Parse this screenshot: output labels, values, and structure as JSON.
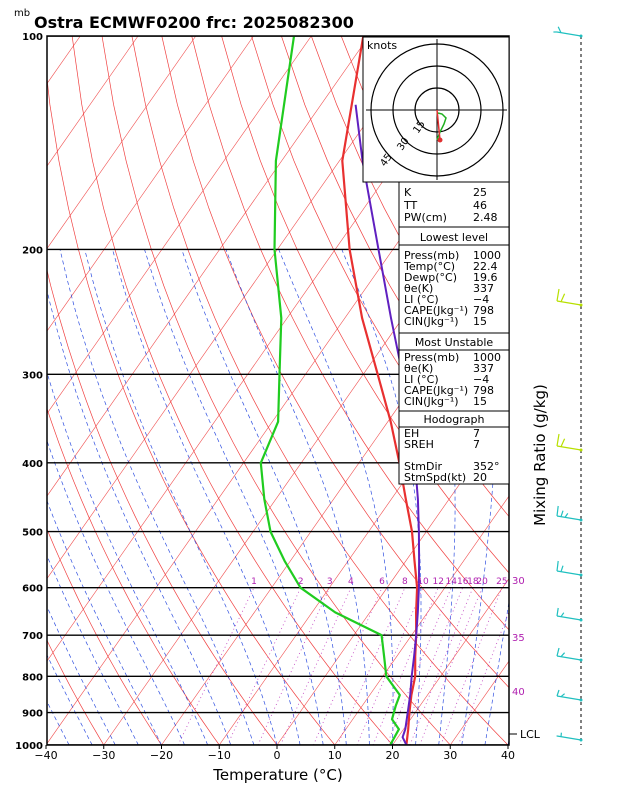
{
  "title": "Ostra ECMWF0200  frc: 2025082300",
  "units_label": "mb",
  "xlabel": "Temperature (°C)",
  "ylabel_right": "Mixing Ratio (g/kg)",
  "lcl_label": "LCL",
  "hodograph": {
    "units": "knots",
    "ring_labels": [
      "15",
      "30",
      "45"
    ]
  },
  "mixing_ratio_labels": [
    "1",
    "2",
    "3",
    "4",
    "6",
    "8",
    "10",
    "12",
    "14",
    "16",
    "18",
    "20",
    "25",
    "30"
  ],
  "theta_e_labels": [
    "30",
    "35",
    "40"
  ],
  "indices": {
    "K_label": "K",
    "K": "25",
    "TT_label": "TT",
    "TT": "46",
    "PW_label": "PW(cm)",
    "PW": "2.48"
  },
  "lowest_level": {
    "heading": "Lowest level",
    "rows": [
      {
        "label": "Press(mb)",
        "value": "1000"
      },
      {
        "label": "Temp(°C)",
        "value": "22.4"
      },
      {
        "label": "Dewp(°C)",
        "value": "19.6"
      },
      {
        "label": "θe(K)",
        "value": "337"
      },
      {
        "label": "LI (°C)",
        "value": "−4"
      },
      {
        "label": "CAPE(Jkg⁻¹)",
        "value": "798"
      },
      {
        "label": "CIN(Jkg⁻¹)",
        "value": "15"
      }
    ]
  },
  "most_unstable": {
    "heading": "Most Unstable",
    "rows": [
      {
        "label": "Press(mb)",
        "value": "1000"
      },
      {
        "label": "θe(K)",
        "value": "337"
      },
      {
        "label": "LI (°C)",
        "value": "−4"
      },
      {
        "label": "CAPE(Jkg⁻¹)",
        "value": "798"
      },
      {
        "label": "CIN(Jkg⁻¹)",
        "value": "15"
      }
    ]
  },
  "hodo_table": {
    "heading": "Hodograph",
    "rows": [
      {
        "label": "EH",
        "value": "7"
      },
      {
        "label": "SREH",
        "value": "7"
      },
      {
        "label": "",
        "value": ""
      },
      {
        "label": "StmDir",
        "value": "352°"
      },
      {
        "label": "StmSpd(kt)",
        "value": "20"
      }
    ]
  },
  "colors": {
    "isotherm": "#f05050",
    "dry_adiabat": "#f04040",
    "moist_adiabat": "#3050e0",
    "mixing_ratio": "#c040c0",
    "temperature": "#e83030",
    "dewpoint": "#20cc20",
    "parcel": "#6020c0",
    "label_magenta": "#b020b0",
    "wind_cyan": "#20c0c0",
    "wind_green": "#b8e000"
  },
  "chart_data": {
    "type": "line",
    "chart_kind": "skew-T log-P",
    "xlabel": "Temperature (°C)",
    "x_ticks": [
      -40,
      -30,
      -20,
      -10,
      0,
      10,
      20,
      30,
      40
    ],
    "xlim": [
      -40,
      40
    ],
    "y_scale": "log",
    "ylim": [
      1000,
      100
    ],
    "pressure_ticks": [
      100,
      200,
      300,
      400,
      500,
      600,
      700,
      800,
      900,
      1000
    ],
    "series": [
      {
        "name": "Temperature",
        "points": [
          {
            "p": 1000,
            "t": 22.4
          },
          {
            "p": 950,
            "t": 20.8
          },
          {
            "p": 900,
            "t": 19.0
          },
          {
            "p": 850,
            "t": 17.2
          },
          {
            "p": 800,
            "t": 15.6
          },
          {
            "p": 750,
            "t": 13.2
          },
          {
            "p": 700,
            "t": 10.8
          },
          {
            "p": 650,
            "t": 8.0
          },
          {
            "p": 600,
            "t": 5.2
          },
          {
            "p": 550,
            "t": 1.5
          },
          {
            "p": 500,
            "t": -2.5
          },
          {
            "p": 450,
            "t": -7.5
          },
          {
            "p": 400,
            "t": -13.0
          },
          {
            "p": 350,
            "t": -19.5
          },
          {
            "p": 300,
            "t": -27.5
          },
          {
            "p": 250,
            "t": -37.0
          },
          {
            "p": 200,
            "t": -47.5
          },
          {
            "p": 150,
            "t": -59.5
          },
          {
            "p": 100,
            "t": -71.0
          }
        ]
      },
      {
        "name": "Dewpoint",
        "points": [
          {
            "p": 1000,
            "t": 19.6
          },
          {
            "p": 950,
            "t": 19.2
          },
          {
            "p": 920,
            "t": 16.8
          },
          {
            "p": 880,
            "t": 15.8
          },
          {
            "p": 850,
            "t": 15.2
          },
          {
            "p": 800,
            "t": 10.6
          },
          {
            "p": 750,
            "t": 7.8
          },
          {
            "p": 700,
            "t": 4.8
          },
          {
            "p": 650,
            "t": -6.0
          },
          {
            "p": 600,
            "t": -15.0
          },
          {
            "p": 550,
            "t": -21.0
          },
          {
            "p": 500,
            "t": -27.0
          },
          {
            "p": 450,
            "t": -32.0
          },
          {
            "p": 400,
            "t": -37.0
          },
          {
            "p": 350,
            "t": -39.0
          },
          {
            "p": 300,
            "t": -44.5
          },
          {
            "p": 250,
            "t": -51.0
          },
          {
            "p": 200,
            "t": -60.5
          },
          {
            "p": 150,
            "t": -71.0
          },
          {
            "p": 100,
            "t": -83.0
          }
        ]
      },
      {
        "name": "Parcel",
        "points": [
          {
            "p": 1000,
            "t": 22.4
          },
          {
            "p": 975,
            "t": 20.8
          },
          {
            "p": 950,
            "t": 20.3
          },
          {
            "p": 900,
            "t": 18.7
          },
          {
            "p": 850,
            "t": 17.0
          },
          {
            "p": 800,
            "t": 15.0
          },
          {
            "p": 750,
            "t": 13.0
          },
          {
            "p": 700,
            "t": 10.8
          },
          {
            "p": 650,
            "t": 8.3
          },
          {
            "p": 600,
            "t": 5.5
          },
          {
            "p": 550,
            "t": 2.3
          },
          {
            "p": 500,
            "t": -1.3
          },
          {
            "p": 450,
            "t": -5.4
          },
          {
            "p": 400,
            "t": -10.3
          },
          {
            "p": 350,
            "t": -16.2
          },
          {
            "p": 300,
            "t": -23.2
          },
          {
            "p": 250,
            "t": -32.0
          },
          {
            "p": 200,
            "t": -42.5
          },
          {
            "p": 150,
            "t": -56.0
          },
          {
            "p": 125,
            "t": -64.0
          }
        ]
      }
    ],
    "lcl_pressure": 965
  }
}
